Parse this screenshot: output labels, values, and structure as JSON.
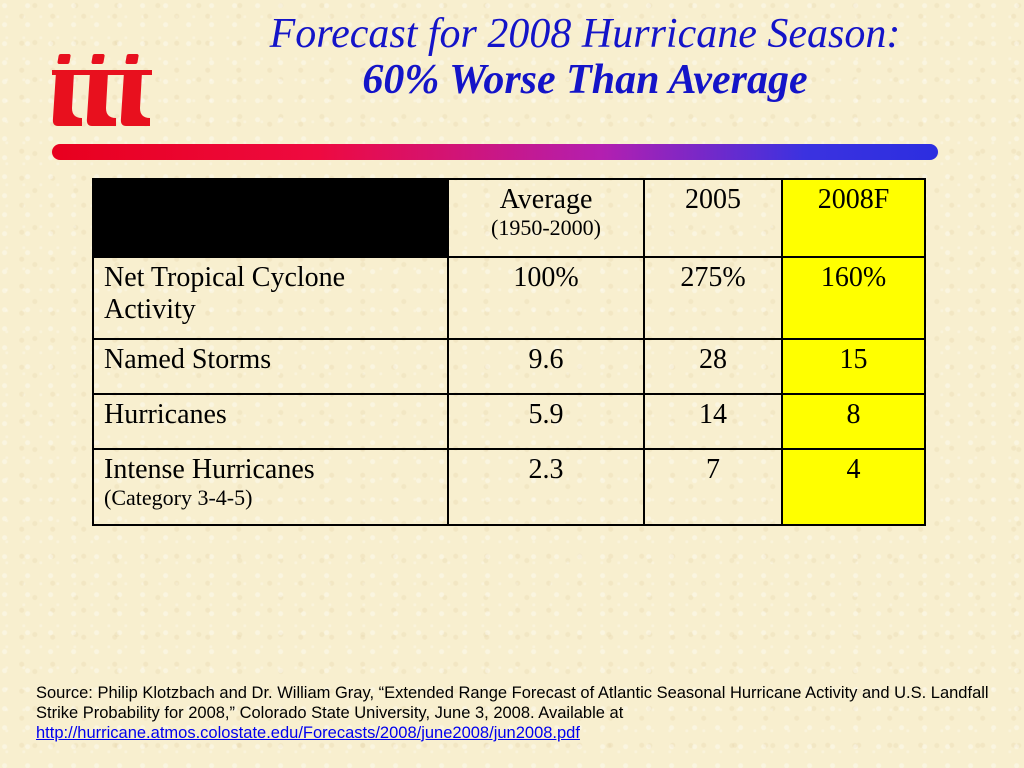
{
  "logo": {
    "icon": "iii-logo-icon",
    "color": "#e8101e"
  },
  "title": {
    "line1": "Forecast for 2008 Hurricane Season:",
    "line2": "60% Worse Than Average",
    "color": "#1414c8"
  },
  "table": {
    "headers": {
      "average": "Average",
      "average_sub": "(1950-2000)",
      "y2005": "2005",
      "y2008": "2008F"
    },
    "rows": [
      {
        "metric": "Net Tropical Cyclone Activity",
        "sub": "",
        "average": "100%",
        "y2005": "275%",
        "y2008": "160%"
      },
      {
        "metric": "Named Storms",
        "sub": "",
        "average": "9.6",
        "y2005": "28",
        "y2008": "15"
      },
      {
        "metric": "Hurricanes",
        "sub": "",
        "average": "5.9",
        "y2005": "14",
        "y2008": "8"
      },
      {
        "metric": "Intense Hurricanes",
        "sub": "(Category 3-4-5)",
        "average": "2.3",
        "y2005": "7",
        "y2008": "4"
      }
    ],
    "highlight_color": "#ffff00"
  },
  "source": {
    "text": "Source: Philip Klotzbach and Dr. William Gray, “Extended Range Forecast of Atlantic Seasonal Hurricane Activity and U.S. Landfall Strike Probability for 2008,” Colorado State University, June 3, 2008. Available at",
    "link": "http://hurricane.atmos.colostate.edu/Forecasts/2008/june2008/jun2008.pdf"
  }
}
